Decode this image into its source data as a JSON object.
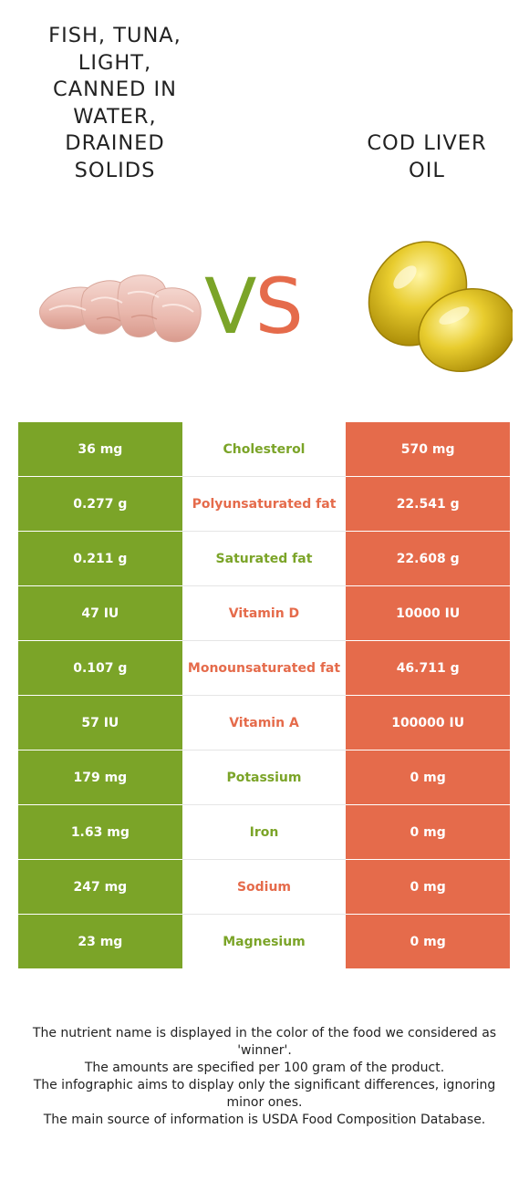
{
  "left_food": {
    "title": "FISH, TUNA, LIGHT, CANNED IN WATER, DRAINED SOLIDS",
    "title_lines": [
      "FISH, TUNA,",
      "LIGHT,",
      "CANNED IN",
      "WATER,",
      "DRAINED",
      "SOLIDS"
    ],
    "image_icon": "tuna-chunks-image"
  },
  "right_food": {
    "title": "COD LIVER OIL",
    "title_lines": [
      "COD LIVER",
      "OIL"
    ],
    "image_icon": "fish-oil-capsules-image"
  },
  "vs": {
    "v": "V",
    "s": "S"
  },
  "colors": {
    "left": "#7ba428",
    "right": "#e56b4b"
  },
  "rows": [
    {
      "left": "36 mg",
      "nutrient": "Cholesterol",
      "right": "570 mg",
      "winner": "left"
    },
    {
      "left": "0.277 g",
      "nutrient": "Polyunsaturated fat",
      "right": "22.541 g",
      "winner": "right"
    },
    {
      "left": "0.211 g",
      "nutrient": "Saturated fat",
      "right": "22.608 g",
      "winner": "left"
    },
    {
      "left": "47 IU",
      "nutrient": "Vitamin D",
      "right": "10000 IU",
      "winner": "right"
    },
    {
      "left": "0.107 g",
      "nutrient": "Monounsaturated fat",
      "right": "46.711 g",
      "winner": "right"
    },
    {
      "left": "57 IU",
      "nutrient": "Vitamin A",
      "right": "100000 IU",
      "winner": "right"
    },
    {
      "left": "179 mg",
      "nutrient": "Potassium",
      "right": "0 mg",
      "winner": "left"
    },
    {
      "left": "1.63 mg",
      "nutrient": "Iron",
      "right": "0 mg",
      "winner": "left"
    },
    {
      "left": "247 mg",
      "nutrient": "Sodium",
      "right": "0 mg",
      "winner": "right"
    },
    {
      "left": "23 mg",
      "nutrient": "Magnesium",
      "right": "0 mg",
      "winner": "left"
    }
  ],
  "footnote": [
    "The nutrient name is displayed in the color of the food we considered as 'winner'.",
    "The amounts are specified per 100 gram of the product.",
    "The infographic aims to display only the significant differences, ignoring minor ones.",
    "The main source of information is USDA Food Composition Database."
  ]
}
